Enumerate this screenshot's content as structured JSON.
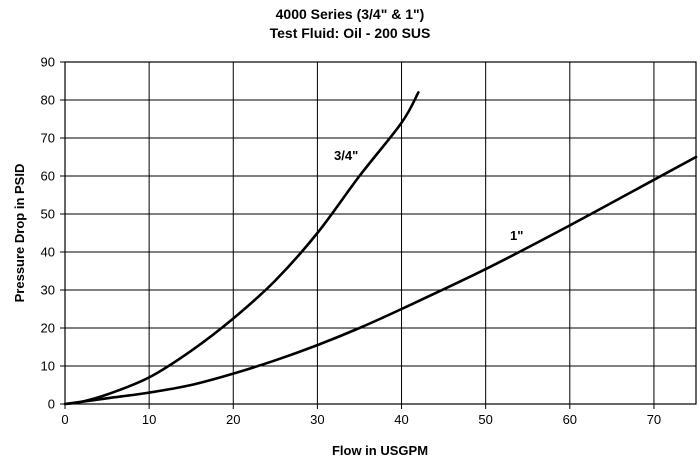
{
  "chart_data": {
    "type": "line",
    "title": "4000 Series (3/4\" & 1\")",
    "subtitle": "Test Fluid: Oil - 200 SUS",
    "xlabel": "Flow in USGPM",
    "ylabel": "Pressure Drop in PSID",
    "xlim": [
      0,
      75
    ],
    "ylim": [
      0,
      90
    ],
    "xticks": [
      "0",
      "10",
      "20",
      "30",
      "40",
      "50",
      "60",
      "70"
    ],
    "yticks": [
      "0",
      "10",
      "20",
      "30",
      "40",
      "50",
      "60",
      "70",
      "80",
      "90"
    ],
    "grid": true,
    "series": [
      {
        "name": "3/4\"",
        "x": [
          0,
          2,
          5,
          10,
          15,
          20,
          25,
          30,
          35,
          40,
          42
        ],
        "y": [
          0,
          0.6,
          2.5,
          7,
          14,
          22.5,
          32.5,
          45,
          60,
          74,
          82
        ]
      },
      {
        "name": "1\"",
        "x": [
          0,
          5,
          10,
          15,
          20,
          25,
          30,
          35,
          40,
          50,
          60,
          70,
          75
        ],
        "y": [
          0,
          1.5,
          3,
          5,
          8,
          11.5,
          15.5,
          20,
          25,
          35.5,
          47,
          59,
          65
        ]
      }
    ]
  }
}
